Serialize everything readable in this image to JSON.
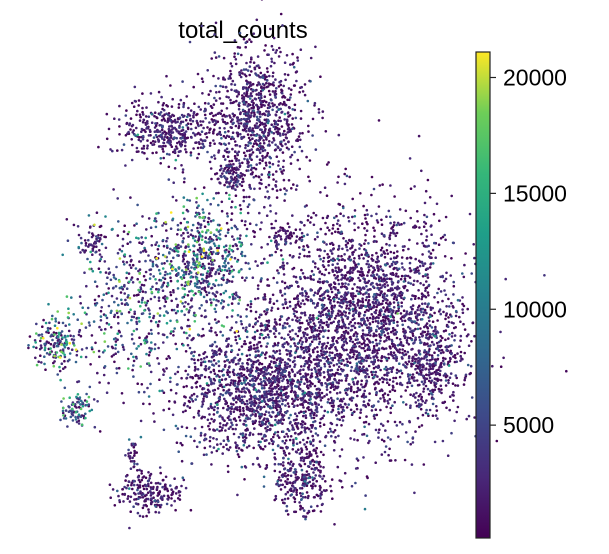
{
  "chart_data": {
    "type": "scatter",
    "title": "total_counts",
    "xlabel": "",
    "ylabel": "",
    "grid": false,
    "axes_visible": false,
    "colormap": "viridis",
    "color_range": [
      130,
      21100
    ],
    "colorbar": {
      "placement": "right",
      "ticks": [
        5000,
        10000,
        15000,
        20000
      ],
      "tick_labels": [
        "5000",
        "10000",
        "15000",
        "20000"
      ]
    },
    "note_points": "approximate point clouds: center, spread (std) and typical total_counts per cluster",
    "clusters": [
      {
        "cx": 5.3,
        "cy": 8.7,
        "sx": 0.8,
        "sy": 1.1,
        "n": 900,
        "mean": 2300
      },
      {
        "cx": 4.8,
        "cy": 7.5,
        "sx": 0.3,
        "sy": 0.25,
        "n": 90,
        "mean": 2000
      },
      {
        "cx": 3.3,
        "cy": 8.5,
        "sx": 0.75,
        "sy": 0.43,
        "n": 420,
        "mean": 2200
      },
      {
        "cx": 6.0,
        "cy": 6.2,
        "sx": 0.2,
        "sy": 0.17,
        "n": 45,
        "mean": 2000
      },
      {
        "cx": 7.8,
        "cy": 4.4,
        "sx": 1.5,
        "sy": 1.6,
        "n": 2500,
        "mean": 2300
      },
      {
        "cx": 9.5,
        "cy": 3.4,
        "sx": 0.45,
        "sy": 0.7,
        "n": 260,
        "mean": 2300
      },
      {
        "cx": 5.4,
        "cy": 2.9,
        "sx": 1.3,
        "sy": 1.0,
        "n": 1500,
        "mean": 2600
      },
      {
        "cx": 6.4,
        "cy": 0.97,
        "sx": 0.45,
        "sy": 0.5,
        "n": 260,
        "mean": 2200
      },
      {
        "cx": 2.8,
        "cy": 0.7,
        "sx": 0.55,
        "sy": 0.3,
        "n": 200,
        "mean": 2000
      },
      {
        "cx": 2.4,
        "cy": 1.6,
        "sx": 0.12,
        "sy": 0.35,
        "n": 30,
        "mean": 2500
      },
      {
        "cx": 4.0,
        "cy": 5.7,
        "sx": 0.75,
        "sy": 0.9,
        "n": 600,
        "mean": 6500
      },
      {
        "cx": 2.4,
        "cy": 4.8,
        "sx": 0.9,
        "sy": 1.2,
        "n": 420,
        "mean": 5500
      },
      {
        "cx": 0.6,
        "cy": 3.9,
        "sx": 0.4,
        "sy": 0.4,
        "n": 160,
        "mean": 6500
      },
      {
        "cx": 1.1,
        "cy": 2.5,
        "sx": 0.26,
        "sy": 0.3,
        "n": 90,
        "mean": 5500
      },
      {
        "cx": 1.5,
        "cy": 6.1,
        "sx": 0.3,
        "sy": 0.3,
        "n": 60,
        "mean": 4000
      }
    ]
  }
}
